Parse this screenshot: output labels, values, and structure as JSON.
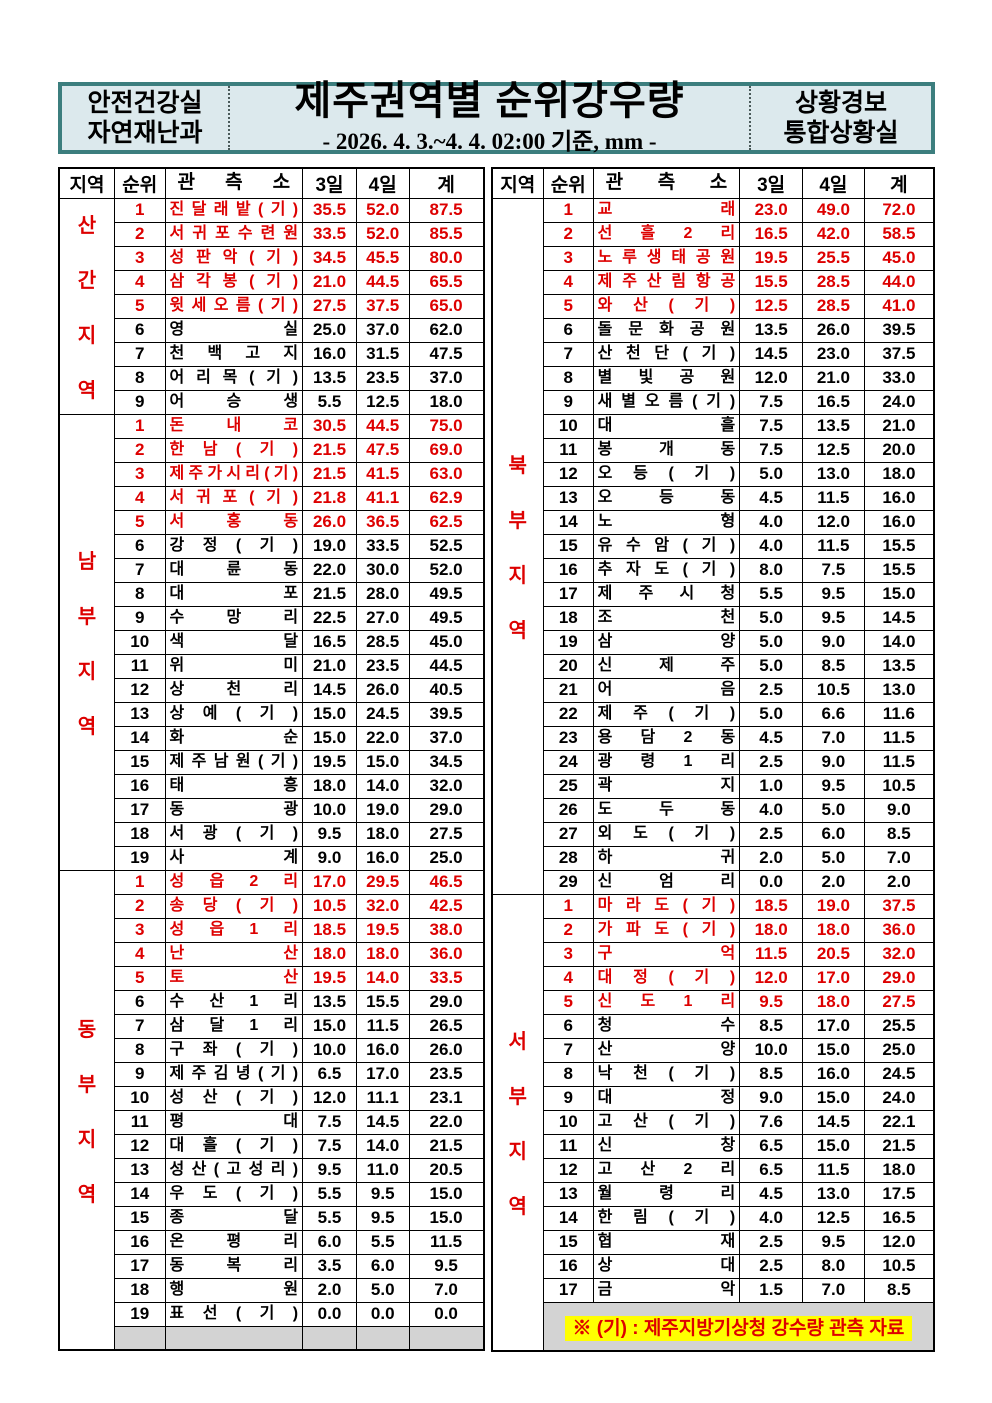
{
  "header": {
    "dept_line1": "안전건강실",
    "dept_line2": "자연재난과",
    "title": "제주권역별 순위강우량",
    "subtitle": "- 2026. 4. 3.~4. 4. 02:00 기준, mm -",
    "office_line1": "상황경보",
    "office_line2": "통합상황실"
  },
  "columns": [
    "지역",
    "순위",
    "관측소",
    "3일",
    "4일",
    "계"
  ],
  "note": "※ (기) : 제주지방기상청 강수량 관측 자료",
  "style": {
    "red_top_ranks": 5,
    "accent_red": "#dd0000",
    "banner_bg": "#dce9ed",
    "banner_border": "#3c7e7e",
    "filler_gray": "#d3d3d3",
    "note_highlight": "#ffff00"
  },
  "tables": {
    "left": {
      "groups": [
        {
          "region": "산간지역",
          "rows": [
            [
              1,
              "진달래밭(기)",
              "35.5",
              "52.0",
              "87.5"
            ],
            [
              2,
              "서귀포수련원",
              "33.5",
              "52.0",
              "85.5"
            ],
            [
              3,
              "성판악(기)",
              "34.5",
              "45.5",
              "80.0"
            ],
            [
              4,
              "삼각봉(기)",
              "21.0",
              "44.5",
              "65.5"
            ],
            [
              5,
              "윗세오름(기)",
              "27.5",
              "37.5",
              "65.0"
            ],
            [
              6,
              "영실",
              "25.0",
              "37.0",
              "62.0"
            ],
            [
              7,
              "천백고지",
              "16.0",
              "31.5",
              "47.5"
            ],
            [
              8,
              "어리목(기)",
              "13.5",
              "23.5",
              "37.0"
            ],
            [
              9,
              "어승생",
              "5.5",
              "12.5",
              "18.0"
            ]
          ]
        },
        {
          "region": "남부지역",
          "rows": [
            [
              1,
              "돈내코",
              "30.5",
              "44.5",
              "75.0"
            ],
            [
              2,
              "한남(기)",
              "21.5",
              "47.5",
              "69.0"
            ],
            [
              3,
              "제주가시리(기)",
              "21.5",
              "41.5",
              "63.0"
            ],
            [
              4,
              "서귀포(기)",
              "21.8",
              "41.1",
              "62.9"
            ],
            [
              5,
              "서홍동",
              "26.0",
              "36.5",
              "62.5"
            ],
            [
              6,
              "강정(기)",
              "19.0",
              "33.5",
              "52.5"
            ],
            [
              7,
              "대륜동",
              "22.0",
              "30.0",
              "52.0"
            ],
            [
              8,
              "대포",
              "21.5",
              "28.0",
              "49.5"
            ],
            [
              9,
              "수망리",
              "22.5",
              "27.0",
              "49.5"
            ],
            [
              10,
              "색달",
              "16.5",
              "28.5",
              "45.0"
            ],
            [
              11,
              "위미",
              "21.0",
              "23.5",
              "44.5"
            ],
            [
              12,
              "상천리",
              "14.5",
              "26.0",
              "40.5"
            ],
            [
              13,
              "상예(기)",
              "15.0",
              "24.5",
              "39.5"
            ],
            [
              14,
              "화순",
              "15.0",
              "22.0",
              "37.0"
            ],
            [
              15,
              "제주남원(기)",
              "19.5",
              "15.0",
              "34.5"
            ],
            [
              16,
              "태흥",
              "18.0",
              "14.0",
              "32.0"
            ],
            [
              17,
              "동광",
              "10.0",
              "19.0",
              "29.0"
            ],
            [
              18,
              "서광(기)",
              "9.5",
              "18.0",
              "27.5"
            ],
            [
              19,
              "사계",
              "9.0",
              "16.0",
              "25.0"
            ]
          ]
        },
        {
          "region": "동부지역",
          "blank_row": true,
          "rows": [
            [
              1,
              "성읍2리",
              "17.0",
              "29.5",
              "46.5"
            ],
            [
              2,
              "송당(기)",
              "10.5",
              "32.0",
              "42.5"
            ],
            [
              3,
              "성읍1리",
              "18.5",
              "19.5",
              "38.0"
            ],
            [
              4,
              "난산",
              "18.0",
              "18.0",
              "36.0"
            ],
            [
              5,
              "토산",
              "19.5",
              "14.0",
              "33.5"
            ],
            [
              6,
              "수산1리",
              "13.5",
              "15.5",
              "29.0"
            ],
            [
              7,
              "삼달1리",
              "15.0",
              "11.5",
              "26.5"
            ],
            [
              8,
              "구좌(기)",
              "10.0",
              "16.0",
              "26.0"
            ],
            [
              9,
              "제주김녕(기)",
              "6.5",
              "17.0",
              "23.5"
            ],
            [
              10,
              "성산(기)",
              "12.0",
              "11.1",
              "23.1"
            ],
            [
              11,
              "평대",
              "7.5",
              "14.5",
              "22.0"
            ],
            [
              12,
              "대흘(기)",
              "7.5",
              "14.0",
              "21.5"
            ],
            [
              13,
              "성산(고성리)",
              "9.5",
              "11.0",
              "20.5"
            ],
            [
              14,
              "우도(기)",
              "5.5",
              "9.5",
              "15.0"
            ],
            [
              15,
              "종달",
              "5.5",
              "9.5",
              "15.0"
            ],
            [
              16,
              "온평리",
              "6.0",
              "5.5",
              "11.5"
            ],
            [
              17,
              "동복리",
              "3.5",
              "6.0",
              "9.5"
            ],
            [
              18,
              "행원",
              "2.0",
              "5.0",
              "7.0"
            ],
            [
              19,
              "표선(기)",
              "0.0",
              "0.0",
              "0.0"
            ]
          ]
        }
      ]
    },
    "right": {
      "groups": [
        {
          "region": "북부지역",
          "rows": [
            [
              1,
              "교래",
              "23.0",
              "49.0",
              "72.0"
            ],
            [
              2,
              "선흘2리",
              "16.5",
              "42.0",
              "58.5"
            ],
            [
              3,
              "노루생태공원",
              "19.5",
              "25.5",
              "45.0"
            ],
            [
              4,
              "제주산림항공",
              "15.5",
              "28.5",
              "44.0"
            ],
            [
              5,
              "와산(기)",
              "12.5",
              "28.5",
              "41.0"
            ],
            [
              6,
              "돌문화공원",
              "13.5",
              "26.0",
              "39.5"
            ],
            [
              7,
              "산천단(기)",
              "14.5",
              "23.0",
              "37.5"
            ],
            [
              8,
              "별빛공원",
              "12.0",
              "21.0",
              "33.0"
            ],
            [
              9,
              "새별오름(기)",
              "7.5",
              "16.5",
              "24.0"
            ],
            [
              10,
              "대흘",
              "7.5",
              "13.5",
              "21.0"
            ],
            [
              11,
              "봉개동",
              "7.5",
              "12.5",
              "20.0"
            ],
            [
              12,
              "오등(기)",
              "5.0",
              "13.0",
              "18.0"
            ],
            [
              13,
              "오등동",
              "4.5",
              "11.5",
              "16.0"
            ],
            [
              14,
              "노형",
              "4.0",
              "12.0",
              "16.0"
            ],
            [
              15,
              "유수암(기)",
              "4.0",
              "11.5",
              "15.5"
            ],
            [
              16,
              "추자도(기)",
              "8.0",
              "7.5",
              "15.5"
            ],
            [
              17,
              "제주시청",
              "5.5",
              "9.5",
              "15.0"
            ],
            [
              18,
              "조천",
              "5.0",
              "9.5",
              "14.5"
            ],
            [
              19,
              "삼양",
              "5.0",
              "9.0",
              "14.0"
            ],
            [
              20,
              "신제주",
              "5.0",
              "8.5",
              "13.5"
            ],
            [
              21,
              "어음",
              "2.5",
              "10.5",
              "13.0"
            ],
            [
              22,
              "제주(기)",
              "5.0",
              "6.6",
              "11.6"
            ],
            [
              23,
              "용담2동",
              "4.5",
              "7.0",
              "11.5"
            ],
            [
              24,
              "광령1리",
              "2.5",
              "9.0",
              "11.5"
            ],
            [
              25,
              "곽지",
              "1.0",
              "9.5",
              "10.5"
            ],
            [
              26,
              "도두동",
              "4.0",
              "5.0",
              "9.0"
            ],
            [
              27,
              "외도(기)",
              "2.5",
              "6.0",
              "8.5"
            ],
            [
              28,
              "하귀",
              "2.0",
              "5.0",
              "7.0"
            ],
            [
              29,
              "신엄리",
              "0.0",
              "2.0",
              "2.0"
            ]
          ]
        },
        {
          "region": "서부지역",
          "note_row": true,
          "rows": [
            [
              1,
              "마라도(기)",
              "18.5",
              "19.0",
              "37.5"
            ],
            [
              2,
              "가파도(기)",
              "18.0",
              "18.0",
              "36.0"
            ],
            [
              3,
              "구억",
              "11.5",
              "20.5",
              "32.0"
            ],
            [
              4,
              "대정(기)",
              "12.0",
              "17.0",
              "29.0"
            ],
            [
              5,
              "신도1리",
              "9.5",
              "18.0",
              "27.5"
            ],
            [
              6,
              "청수",
              "8.5",
              "17.0",
              "25.5"
            ],
            [
              7,
              "산양",
              "10.0",
              "15.0",
              "25.0"
            ],
            [
              8,
              "낙천(기)",
              "8.5",
              "16.0",
              "24.5"
            ],
            [
              9,
              "대정",
              "9.0",
              "15.0",
              "24.0"
            ],
            [
              10,
              "고산(기)",
              "7.6",
              "14.5",
              "22.1"
            ],
            [
              11,
              "신창",
              "6.5",
              "15.0",
              "21.5"
            ],
            [
              12,
              "고산2리",
              "6.5",
              "11.5",
              "18.0"
            ],
            [
              13,
              "월령리",
              "4.5",
              "13.0",
              "17.5"
            ],
            [
              14,
              "한림(기)",
              "4.0",
              "12.5",
              "16.5"
            ],
            [
              15,
              "협재",
              "2.5",
              "9.5",
              "12.0"
            ],
            [
              16,
              "상대",
              "2.5",
              "8.0",
              "10.5"
            ],
            [
              17,
              "금악",
              "1.5",
              "7.0",
              "8.5"
            ]
          ]
        }
      ]
    }
  }
}
